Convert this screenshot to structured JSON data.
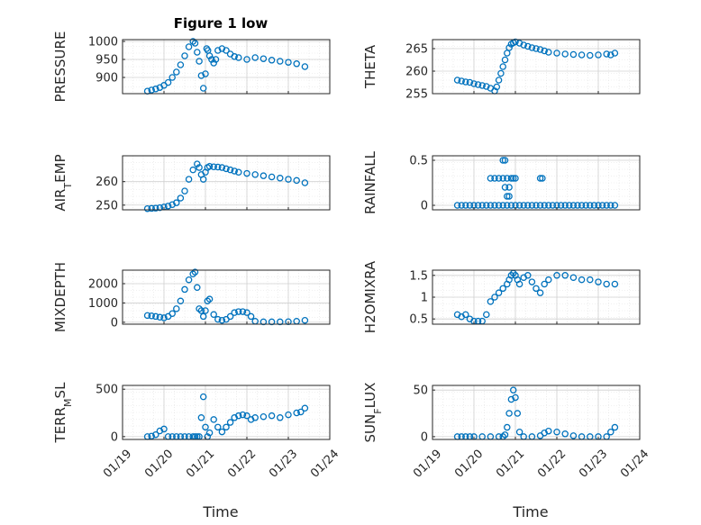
{
  "figure": {
    "title": "Figure 1 low",
    "marker_color": "#0072BD",
    "grid": true,
    "minor_grid": true
  },
  "chart_data": [
    {
      "type": "scatter",
      "ylabel": "PRESSURE",
      "xlabel": "",
      "x_ticks": [],
      "yticks": [
        900,
        950,
        1000
      ],
      "ylim": [
        855,
        1005
      ],
      "xlim": [
        0,
        5
      ],
      "series": [
        {
          "x": [
            0.6,
            0.7,
            0.8,
            0.9,
            1.0,
            1.1,
            1.2,
            1.3,
            1.4,
            1.5,
            1.6,
            1.7,
            1.75,
            1.8,
            1.85,
            1.9,
            1.95,
            2.0,
            2.03,
            2.06,
            2.1,
            2.15,
            2.2,
            2.25,
            2.3,
            2.4,
            2.5,
            2.6,
            2.7,
            2.8,
            3.0,
            3.2,
            3.4,
            3.6,
            3.8,
            4.0,
            4.2,
            4.4
          ],
          "y": [
            862,
            865,
            868,
            872,
            878,
            886,
            900,
            915,
            935,
            960,
            985,
            1000,
            995,
            970,
            945,
            905,
            870,
            910,
            980,
            975,
            960,
            950,
            940,
            950,
            975,
            980,
            975,
            965,
            958,
            955,
            950,
            955,
            952,
            948,
            945,
            942,
            938,
            930
          ]
        }
      ]
    },
    {
      "type": "scatter",
      "ylabel": "THETA",
      "xlabel": "",
      "x_ticks": [],
      "yticks": [
        255,
        260,
        265
      ],
      "ylim": [
        255,
        267
      ],
      "xlim": [
        0,
        5
      ],
      "series": [
        {
          "x": [
            0.6,
            0.7,
            0.8,
            0.9,
            1.0,
            1.1,
            1.2,
            1.3,
            1.4,
            1.5,
            1.55,
            1.6,
            1.65,
            1.7,
            1.75,
            1.8,
            1.85,
            1.9,
            1.95,
            2.0,
            2.1,
            2.2,
            2.3,
            2.4,
            2.5,
            2.6,
            2.7,
            2.8,
            3.0,
            3.2,
            3.4,
            3.6,
            3.8,
            4.0,
            4.2,
            4.3,
            4.4
          ],
          "y": [
            258,
            257.8,
            257.6,
            257.5,
            257.2,
            257,
            256.8,
            256.6,
            256.2,
            255.6,
            256.5,
            258,
            259.5,
            261,
            262.5,
            264,
            265.2,
            266,
            266.3,
            266.5,
            266.2,
            265.8,
            265.5,
            265.2,
            265,
            264.8,
            264.5,
            264.2,
            264,
            263.8,
            263.7,
            263.6,
            263.5,
            263.6,
            263.8,
            263.6,
            264
          ]
        }
      ]
    },
    {
      "type": "scatter",
      "ylabel": "AIR_TEMP",
      "xlabel": "",
      "x_ticks": [],
      "yticks": [
        250,
        260
      ],
      "ylim": [
        248,
        271
      ],
      "xlim": [
        0,
        5
      ],
      "series": [
        {
          "x": [
            0.6,
            0.7,
            0.8,
            0.9,
            1.0,
            1.1,
            1.2,
            1.3,
            1.4,
            1.5,
            1.6,
            1.7,
            1.8,
            1.85,
            1.9,
            1.95,
            2.0,
            2.05,
            2.1,
            2.2,
            2.3,
            2.4,
            2.5,
            2.6,
            2.7,
            2.8,
            3.0,
            3.2,
            3.4,
            3.6,
            3.8,
            4.0,
            4.2,
            4.4
          ],
          "y": [
            248.5,
            248.6,
            248.7,
            248.9,
            249.2,
            249.6,
            250.2,
            251,
            253,
            256,
            261,
            265,
            267.5,
            266,
            263,
            261,
            264,
            266,
            266.5,
            266.3,
            266.2,
            266,
            265.5,
            265,
            264.5,
            264,
            263.5,
            263,
            262.5,
            262,
            261.5,
            261,
            260.5,
            259.5
          ]
        }
      ]
    },
    {
      "type": "scatter",
      "ylabel": "RAINFALL",
      "xlabel": "",
      "x_ticks": [],
      "yticks": [
        0,
        0.5
      ],
      "ylim": [
        -0.05,
        0.55
      ],
      "xlim": [
        0,
        5
      ],
      "series": [
        {
          "x": [
            0.6,
            0.7,
            0.8,
            0.9,
            1.0,
            1.1,
            1.2,
            1.3,
            1.4,
            1.5,
            1.6,
            1.7,
            1.8,
            1.9,
            2.0,
            2.1,
            2.2,
            2.3,
            2.4,
            2.5,
            2.6,
            2.7,
            2.8,
            2.9,
            3.0,
            3.1,
            3.2,
            3.3,
            3.4,
            3.5,
            3.6,
            3.7,
            3.8,
            3.9,
            4.0,
            4.1,
            4.2,
            4.3,
            4.4,
            1.4,
            1.5,
            1.6,
            1.7,
            1.75,
            1.8,
            1.85,
            1.9,
            1.95,
            2.0,
            1.7,
            2.6,
            2.65,
            1.8,
            1.85,
            1.75
          ],
          "y": [
            0,
            0,
            0,
            0,
            0,
            0,
            0,
            0,
            0,
            0,
            0,
            0,
            0,
            0,
            0,
            0,
            0,
            0,
            0,
            0,
            0,
            0,
            0,
            0,
            0,
            0,
            0,
            0,
            0,
            0,
            0,
            0,
            0,
            0,
            0,
            0,
            0,
            0,
            0,
            0.3,
            0.3,
            0.3,
            0.3,
            0.2,
            0.3,
            0.2,
            0.3,
            0.3,
            0.3,
            0.5,
            0.3,
            0.3,
            0.1,
            0.1,
            0.5
          ]
        }
      ]
    },
    {
      "type": "scatter",
      "ylabel": "MIXDEPTH",
      "xlabel": "",
      "x_ticks": [],
      "yticks": [
        0,
        1000,
        2000
      ],
      "ylim": [
        -100,
        2700
      ],
      "xlim": [
        0,
        5
      ],
      "series": [
        {
          "x": [
            0.6,
            0.7,
            0.8,
            0.9,
            1.0,
            1.1,
            1.2,
            1.3,
            1.4,
            1.5,
            1.6,
            1.7,
            1.75,
            1.8,
            1.85,
            1.9,
            1.95,
            2.0,
            2.05,
            2.1,
            2.2,
            2.3,
            2.4,
            2.5,
            2.6,
            2.7,
            2.8,
            2.9,
            3.0,
            3.1,
            3.2,
            3.4,
            3.6,
            3.8,
            4.0,
            4.2,
            4.4
          ],
          "y": [
            350,
            330,
            300,
            260,
            230,
            300,
            450,
            700,
            1100,
            1700,
            2200,
            2500,
            2600,
            1800,
            700,
            600,
            300,
            600,
            1100,
            1200,
            400,
            150,
            100,
            150,
            300,
            500,
            550,
            550,
            500,
            300,
            50,
            20,
            20,
            20,
            30,
            50,
            100
          ]
        }
      ]
    },
    {
      "type": "scatter",
      "ylabel": "H2OMIXRA",
      "xlabel": "",
      "x_ticks": [],
      "yticks": [
        0.5,
        1,
        1.5
      ],
      "ylim": [
        0.38,
        1.62
      ],
      "xlim": [
        0,
        5
      ],
      "series": [
        {
          "x": [
            0.6,
            0.7,
            0.8,
            0.9,
            1.0,
            1.1,
            1.2,
            1.3,
            1.4,
            1.5,
            1.6,
            1.7,
            1.8,
            1.85,
            1.9,
            1.95,
            2.0,
            2.05,
            2.1,
            2.2,
            2.3,
            2.4,
            2.5,
            2.6,
            2.7,
            2.8,
            3.0,
            3.2,
            3.4,
            3.6,
            3.8,
            4.0,
            4.2,
            4.4
          ],
          "y": [
            0.6,
            0.55,
            0.6,
            0.5,
            0.45,
            0.45,
            0.45,
            0.6,
            0.9,
            1.0,
            1.1,
            1.2,
            1.3,
            1.4,
            1.5,
            1.55,
            1.5,
            1.4,
            1.3,
            1.45,
            1.5,
            1.35,
            1.2,
            1.1,
            1.3,
            1.4,
            1.5,
            1.5,
            1.45,
            1.4,
            1.4,
            1.35,
            1.3,
            1.3
          ]
        }
      ]
    },
    {
      "type": "scatter",
      "ylabel": "TERR_MSL",
      "xlabel": "Time",
      "x_ticks": [
        "01/19",
        "01/20",
        "01/21",
        "01/22",
        "01/23",
        "01/24"
      ],
      "yticks": [
        0,
        500
      ],
      "ylim": [
        -30,
        540
      ],
      "xlim": [
        0,
        5
      ],
      "series": [
        {
          "x": [
            0.6,
            0.7,
            0.8,
            0.9,
            1.0,
            1.1,
            1.2,
            1.3,
            1.4,
            1.5,
            1.6,
            1.7,
            1.75,
            1.8,
            1.85,
            1.9,
            1.95,
            2.0,
            2.05,
            2.1,
            2.2,
            2.3,
            2.4,
            2.5,
            2.6,
            2.7,
            2.8,
            2.9,
            3.0,
            3.1,
            3.2,
            3.4,
            3.6,
            3.8,
            4.0,
            4.2,
            4.3,
            4.4
          ],
          "y": [
            0,
            5,
            20,
            60,
            80,
            0,
            0,
            0,
            0,
            0,
            0,
            0,
            0,
            0,
            0,
            200,
            420,
            100,
            0,
            40,
            180,
            100,
            50,
            100,
            150,
            200,
            220,
            230,
            220,
            180,
            200,
            210,
            220,
            200,
            230,
            250,
            260,
            300
          ]
        }
      ]
    },
    {
      "type": "scatter",
      "ylabel": "SUN_FLUX",
      "xlabel": "Time",
      "x_ticks": [
        "01/19",
        "01/20",
        "01/21",
        "01/22",
        "01/23",
        "01/24"
      ],
      "yticks": [
        0,
        50
      ],
      "ylim": [
        -3,
        55
      ],
      "xlim": [
        0,
        5
      ],
      "series": [
        {
          "x": [
            0.6,
            0.7,
            0.8,
            0.9,
            1.0,
            1.2,
            1.4,
            1.6,
            1.7,
            1.75,
            1.8,
            1.85,
            1.9,
            1.95,
            2.0,
            2.05,
            2.1,
            2.2,
            2.4,
            2.6,
            2.7,
            2.8,
            3.0,
            3.2,
            3.4,
            3.6,
            3.8,
            4.0,
            4.2,
            4.3,
            4.4
          ],
          "y": [
            0,
            0,
            0,
            0,
            0,
            0,
            0,
            0,
            0,
            2,
            10,
            25,
            40,
            50,
            42,
            25,
            5,
            0,
            0,
            1,
            4,
            6,
            5,
            3,
            1,
            0,
            0,
            0,
            0,
            5,
            10
          ]
        }
      ]
    }
  ]
}
